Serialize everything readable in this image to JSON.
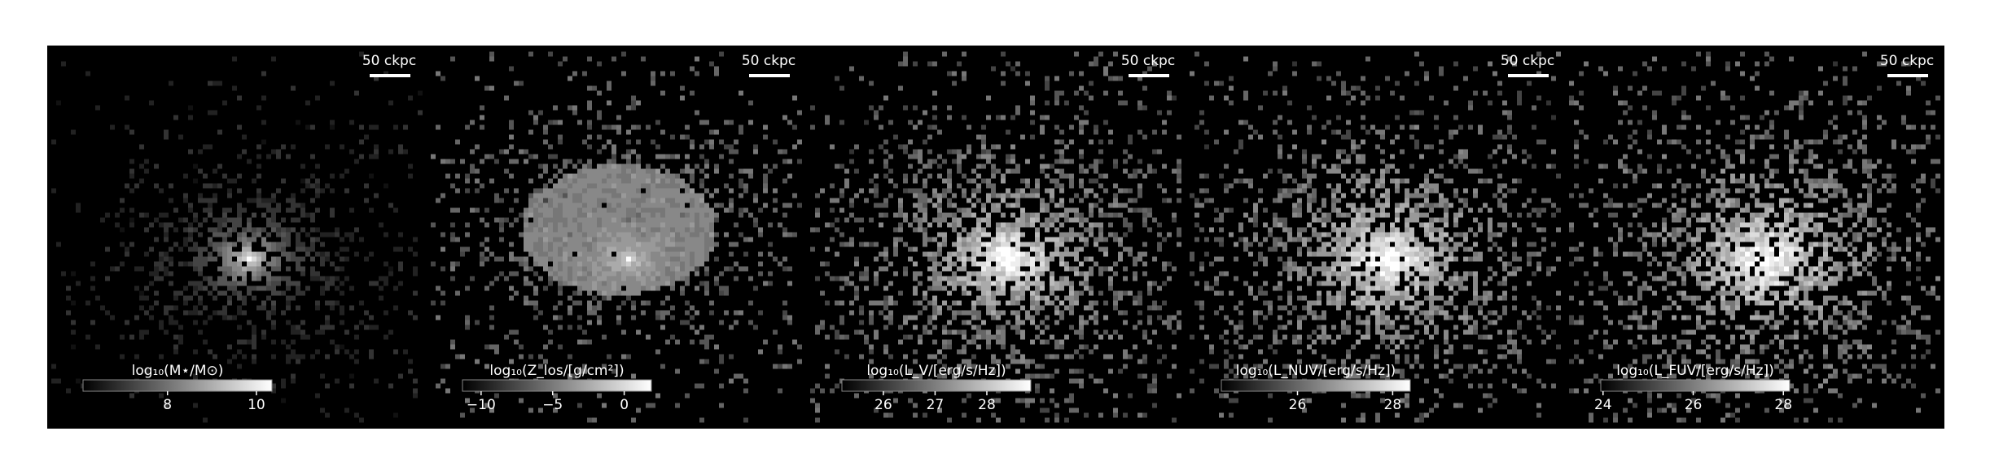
{
  "panels": [
    {
      "scale_label": "50 ckpc",
      "colorbar": {
        "label": "log₁₀(M⋆/M⊙)",
        "lim": [
          6.1,
          10.35
        ],
        "ticks": [
          8,
          10
        ]
      }
    },
    {
      "scale_label": "50 ckpc",
      "colorbar": {
        "label": "log₁₀(Z_los/[g/cm²])",
        "lim": [
          -11.3,
          1.9
        ],
        "ticks": [
          {
            "value": -10,
            "label": "−10"
          },
          {
            "value": -5,
            "label": "−5"
          },
          0
        ]
      }
    },
    {
      "scale_label": "50 ckpc",
      "colorbar": {
        "label": "log₁₀(L_V/[erg/s/Hz])",
        "lim": [
          25.2,
          28.85
        ],
        "ticks": [
          26,
          27,
          28
        ]
      }
    },
    {
      "scale_label": "50 ckpc",
      "colorbar": {
        "label": "log₁₀(L_NUV/[erg/s/Hz])",
        "lim": [
          24.4,
          28.37
        ],
        "ticks": [
          26,
          28
        ]
      }
    },
    {
      "scale_label": "50 ckpc",
      "colorbar": {
        "label": "log₁₀(L_FUV/[erg/s/Hz])",
        "lim": [
          23.95,
          28.14
        ],
        "ticks": [
          24,
          26,
          28
        ]
      }
    }
  ]
}
